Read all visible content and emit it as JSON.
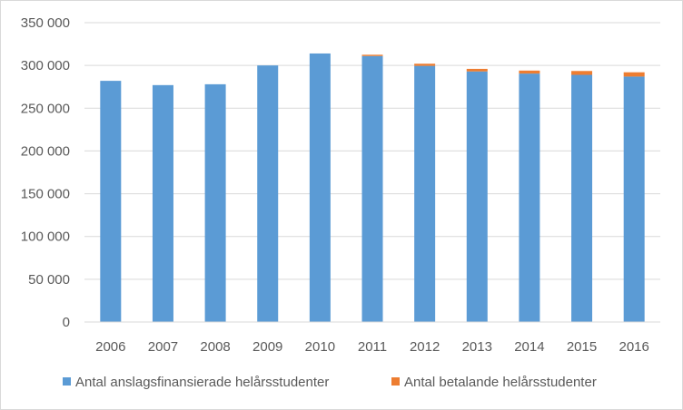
{
  "chart_data": {
    "type": "bar",
    "stacked": true,
    "categories": [
      "2006",
      "2007",
      "2008",
      "2009",
      "2010",
      "2011",
      "2012",
      "2013",
      "2014",
      "2015",
      "2016"
    ],
    "series": [
      {
        "name": "Antal anslagsfinansierade helårsstudenter",
        "color": "#5b9bd5",
        "values": [
          282000,
          277000,
          278000,
          300000,
          314000,
          311000,
          299500,
          293000,
          290500,
          289000,
          287000
        ]
      },
      {
        "name": "Antal betalande helårsstudenter",
        "color": "#ed7d31",
        "values": [
          0,
          0,
          0,
          0,
          0,
          1500,
          2500,
          3000,
          3500,
          4500,
          5000
        ]
      }
    ],
    "ylim": [
      0,
      350000
    ],
    "yticks": [
      0,
      50000,
      100000,
      150000,
      200000,
      250000,
      300000,
      350000
    ],
    "ytick_labels": [
      "0",
      "50 000",
      "100 000",
      "150 000",
      "200 000",
      "250 000",
      "300 000",
      "350 000"
    ],
    "grid": true,
    "legend_position": "bottom",
    "title": "",
    "xlabel": "",
    "ylabel": ""
  }
}
